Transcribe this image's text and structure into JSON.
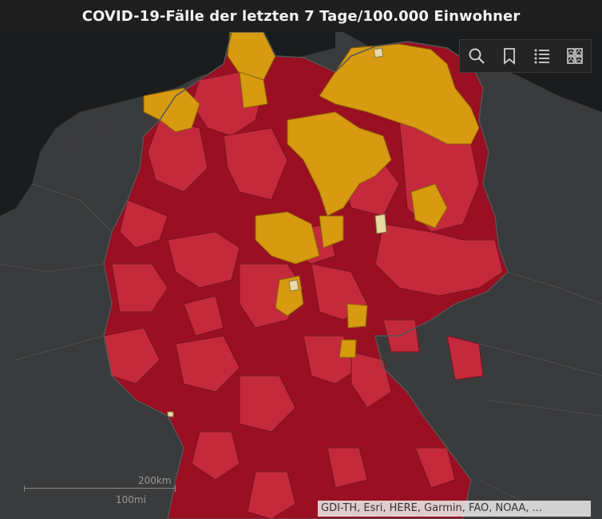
{
  "title": "COVID-19-Fälle der letzten 7 Tage/100.000 Einwohner",
  "toolbar": {
    "items": [
      {
        "icon": "search-icon"
      },
      {
        "icon": "bookmark-icon"
      },
      {
        "icon": "legend-list-icon"
      },
      {
        "icon": "basemap-gallery-icon"
      }
    ]
  },
  "scalebar": {
    "km_label": "200km",
    "mi_label": "100mi"
  },
  "attribution": "GDI-TH, Esri, HERE, Garmin, FAO, NOAA, ...",
  "colors": {
    "background_dark": "#1f1f1f",
    "water": "#1c1d1e",
    "land_neighbors": "#3b3c3e",
    "incidence_highest": "#9a0f22",
    "incidence_high": "#c42a3c",
    "incidence_medium": "#d79a10",
    "incidence_low": "#e9d9a3"
  }
}
